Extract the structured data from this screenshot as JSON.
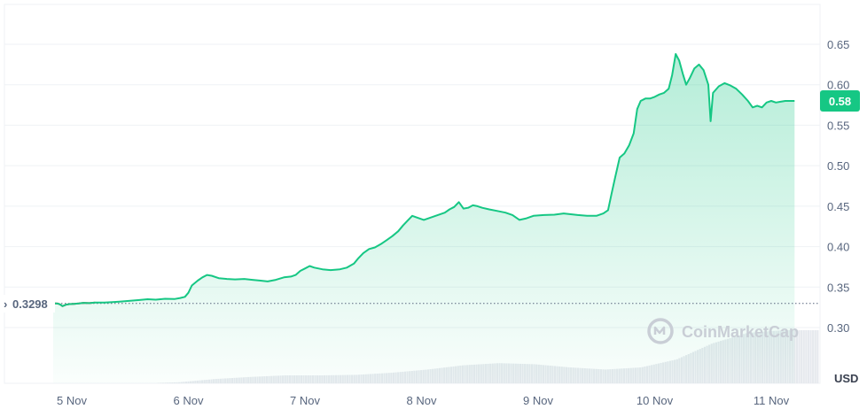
{
  "chart_data": {
    "type": "area",
    "unit": "USD",
    "y_ticks": [
      0.3,
      0.35,
      0.4,
      0.45,
      0.5,
      0.55,
      0.6,
      0.65
    ],
    "y_tick_labels": [
      "0.30",
      "0.35",
      "0.40",
      "0.45",
      "0.50",
      "0.55",
      "0.60",
      "0.65"
    ],
    "ylim": [
      0.2775,
      0.6875
    ],
    "x_tick_labels": [
      "5 Nov",
      "6 Nov",
      "7 Nov",
      "8 Nov",
      "9 Nov",
      "10 Nov",
      "11 Nov"
    ],
    "xlim_days": [
      4.8,
      11.4
    ],
    "grid": true,
    "reference_value": 0.3298,
    "reference_label": "0.3298",
    "current_value": 0.58,
    "current_label": "0.58",
    "watermark": "CoinMarketCap",
    "colors": {
      "up": "#16c784",
      "down": "#ea3943",
      "grid": "#eff2f5",
      "badge": "#16c784"
    },
    "series": [
      {
        "values": [
          [
            4.84,
            0.33
          ],
          [
            4.88,
            0.3296
          ],
          [
            4.9,
            0.3285
          ],
          [
            4.92,
            0.3265
          ],
          [
            4.95,
            0.3282
          ],
          [
            4.98,
            0.329
          ],
          [
            5.02,
            0.3293
          ],
          [
            5.06,
            0.3297
          ],
          [
            5.1,
            0.3305
          ],
          [
            5.15,
            0.3302
          ],
          [
            5.2,
            0.331
          ],
          [
            5.28,
            0.3308
          ],
          [
            5.35,
            0.3315
          ],
          [
            5.42,
            0.3322
          ],
          [
            5.5,
            0.333
          ],
          [
            5.58,
            0.334
          ],
          [
            5.65,
            0.335
          ],
          [
            5.72,
            0.3345
          ],
          [
            5.8,
            0.3355
          ],
          [
            5.88,
            0.3352
          ],
          [
            5.93,
            0.3365
          ],
          [
            5.97,
            0.338
          ],
          [
            6.0,
            0.343
          ],
          [
            6.03,
            0.352
          ],
          [
            6.08,
            0.358
          ],
          [
            6.12,
            0.362
          ],
          [
            6.16,
            0.365
          ],
          [
            6.2,
            0.364
          ],
          [
            6.26,
            0.361
          ],
          [
            6.33,
            0.36
          ],
          [
            6.4,
            0.3595
          ],
          [
            6.48,
            0.36
          ],
          [
            6.55,
            0.359
          ],
          [
            6.62,
            0.358
          ],
          [
            6.68,
            0.357
          ],
          [
            6.75,
            0.359
          ],
          [
            6.82,
            0.362
          ],
          [
            6.88,
            0.363
          ],
          [
            6.92,
            0.365
          ],
          [
            6.96,
            0.37
          ],
          [
            7.0,
            0.373
          ],
          [
            7.04,
            0.376
          ],
          [
            7.08,
            0.374
          ],
          [
            7.15,
            0.372
          ],
          [
            7.22,
            0.371
          ],
          [
            7.3,
            0.372
          ],
          [
            7.36,
            0.374
          ],
          [
            7.42,
            0.379
          ],
          [
            7.46,
            0.386
          ],
          [
            7.5,
            0.392
          ],
          [
            7.55,
            0.397
          ],
          [
            7.6,
            0.399
          ],
          [
            7.65,
            0.403
          ],
          [
            7.7,
            0.408
          ],
          [
            7.75,
            0.413
          ],
          [
            7.8,
            0.419
          ],
          [
            7.84,
            0.426
          ],
          [
            7.88,
            0.432
          ],
          [
            7.92,
            0.438
          ],
          [
            7.96,
            0.436
          ],
          [
            8.02,
            0.433
          ],
          [
            8.08,
            0.436
          ],
          [
            8.14,
            0.439
          ],
          [
            8.2,
            0.442
          ],
          [
            8.24,
            0.446
          ],
          [
            8.28,
            0.449
          ],
          [
            8.32,
            0.455
          ],
          [
            8.36,
            0.447
          ],
          [
            8.4,
            0.448
          ],
          [
            8.44,
            0.451
          ],
          [
            8.48,
            0.45
          ],
          [
            8.52,
            0.448
          ],
          [
            8.58,
            0.446
          ],
          [
            8.65,
            0.444
          ],
          [
            8.72,
            0.442
          ],
          [
            8.78,
            0.439
          ],
          [
            8.84,
            0.433
          ],
          [
            8.9,
            0.435
          ],
          [
            8.96,
            0.438
          ],
          [
            9.05,
            0.439
          ],
          [
            9.14,
            0.4395
          ],
          [
            9.22,
            0.441
          ],
          [
            9.28,
            0.44
          ],
          [
            9.34,
            0.439
          ],
          [
            9.42,
            0.438
          ],
          [
            9.5,
            0.438
          ],
          [
            9.56,
            0.441
          ],
          [
            9.6,
            0.445
          ],
          [
            9.63,
            0.465
          ],
          [
            9.66,
            0.485
          ],
          [
            9.7,
            0.51
          ],
          [
            9.74,
            0.515
          ],
          [
            9.78,
            0.525
          ],
          [
            9.82,
            0.54
          ],
          [
            9.85,
            0.57
          ],
          [
            9.88,
            0.58
          ],
          [
            9.92,
            0.583
          ],
          [
            9.96,
            0.583
          ],
          [
            10.0,
            0.585
          ],
          [
            10.04,
            0.588
          ],
          [
            10.08,
            0.59
          ],
          [
            10.12,
            0.595
          ],
          [
            10.15,
            0.612
          ],
          [
            10.18,
            0.638
          ],
          [
            10.21,
            0.63
          ],
          [
            10.24,
            0.614
          ],
          [
            10.27,
            0.6
          ],
          [
            10.3,
            0.608
          ],
          [
            10.34,
            0.62
          ],
          [
            10.38,
            0.625
          ],
          [
            10.42,
            0.618
          ],
          [
            10.46,
            0.6
          ],
          [
            10.48,
            0.555
          ],
          [
            10.5,
            0.59
          ],
          [
            10.55,
            0.598
          ],
          [
            10.6,
            0.602
          ],
          [
            10.65,
            0.599
          ],
          [
            10.7,
            0.595
          ],
          [
            10.75,
            0.588
          ],
          [
            10.8,
            0.58
          ],
          [
            10.84,
            0.572
          ],
          [
            10.88,
            0.574
          ],
          [
            10.92,
            0.572
          ],
          [
            10.96,
            0.578
          ],
          [
            11.0,
            0.58
          ],
          [
            11.04,
            0.578
          ],
          [
            11.08,
            0.579
          ],
          [
            11.12,
            0.58
          ],
          [
            11.16,
            0.58
          ],
          [
            11.2,
            0.58
          ]
        ]
      }
    ],
    "volume_series": [
      0.0,
      0.0,
      0.02,
      0.08,
      0.12,
      0.15,
      0.15,
      0.16,
      0.2,
      0.26,
      0.34,
      0.38,
      0.36,
      0.3,
      0.26,
      0.3,
      0.45,
      0.75,
      0.95,
      1.0,
      1.0
    ]
  }
}
